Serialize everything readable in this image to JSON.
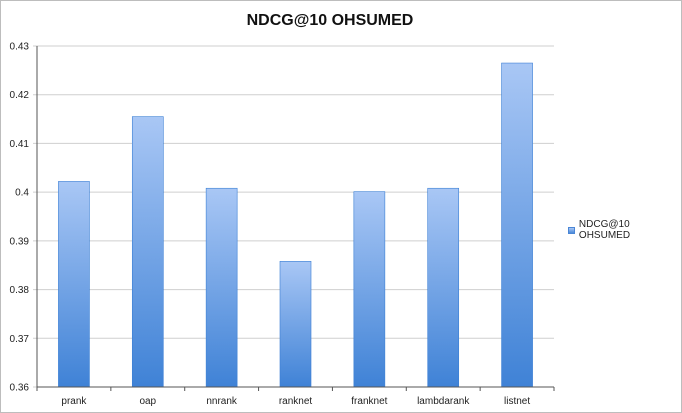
{
  "chart_data": {
    "type": "bar",
    "title": "NDCG@10 OHSUMED",
    "categories": [
      "prank",
      "oap",
      "nnrank",
      "ranknet",
      "franknet",
      "lambdarank",
      "listnet"
    ],
    "series": [
      {
        "name": "NDCG@10 OHSUMED",
        "values": [
          0.4022,
          0.4155,
          0.4008,
          0.3858,
          0.4001,
          0.4008,
          0.4265
        ]
      }
    ],
    "ylim": [
      0.36,
      0.43
    ],
    "yticks": [
      "0.36",
      "0.37",
      "0.38",
      "0.39",
      "0.4",
      "0.41",
      "0.42",
      "0.43"
    ],
    "grid": true,
    "legend_position": "right",
    "colors": {
      "bar_top": "#a9c7f5",
      "bar_bottom": "#3f82d6",
      "grid": "#cfcfcf"
    }
  }
}
